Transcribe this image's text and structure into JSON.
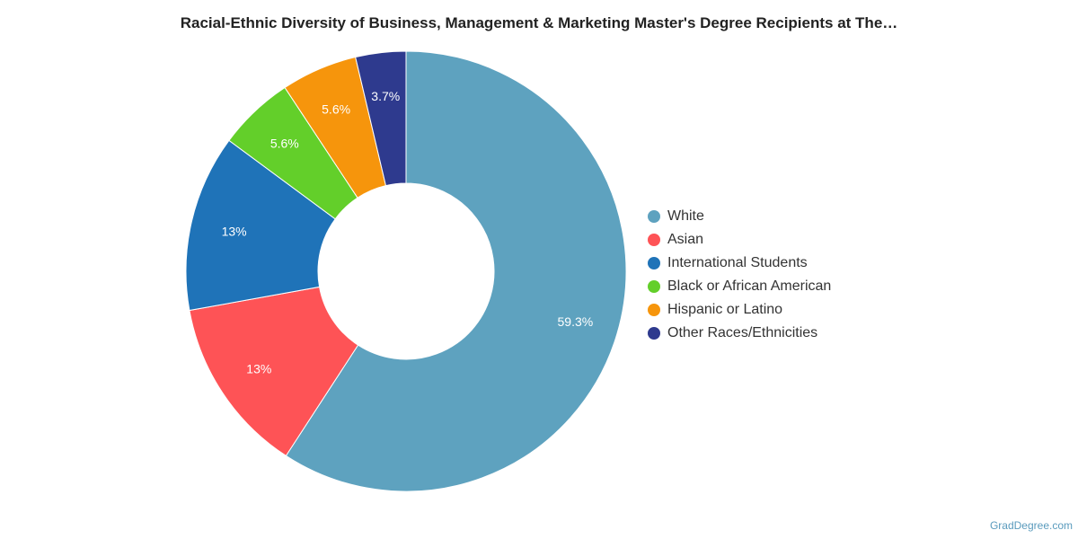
{
  "chart_data": {
    "type": "pie",
    "donut": true,
    "title": "Racial-Ethnic Diversity of Business, Management & Marketing Master's Degree Recipients at The…",
    "slices": [
      {
        "name": "White",
        "value": 59.3,
        "label": "59.3%",
        "color": "#5ea2bf"
      },
      {
        "name": "Asian",
        "value": 13,
        "label": "13%",
        "color": "#fe5356"
      },
      {
        "name": "International Students",
        "value": 13,
        "label": "13%",
        "color": "#1f73b8"
      },
      {
        "name": "Black or African American",
        "value": 5.6,
        "label": "5.6%",
        "color": "#63cf2a"
      },
      {
        "name": "Hispanic or Latino",
        "value": 5.6,
        "label": "5.6%",
        "color": "#f6950c"
      },
      {
        "name": "Other Races/Ethnicities",
        "value": 3.7,
        "label": "3.7%",
        "color": "#2e3a8e"
      }
    ],
    "legend_position": "right"
  },
  "credit": "GradDegree.com"
}
